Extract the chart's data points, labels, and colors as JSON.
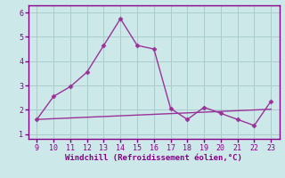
{
  "x": [
    9,
    10,
    11,
    12,
    13,
    14,
    15,
    16,
    17,
    18,
    19,
    20,
    21,
    22,
    23
  ],
  "y_line1": [
    1.6,
    2.55,
    2.95,
    3.55,
    4.65,
    5.75,
    4.65,
    4.5,
    2.05,
    1.6,
    2.1,
    1.85,
    1.6,
    1.35,
    2.35
  ],
  "y_line2": [
    1.6,
    1.63,
    1.66,
    1.69,
    1.72,
    1.75,
    1.78,
    1.81,
    1.84,
    1.87,
    1.9,
    1.93,
    1.96,
    1.99,
    2.02
  ],
  "line_color": "#993399",
  "bg_color": "#cce8e8",
  "grid_color": "#aacccc",
  "xlabel": "Windchill (Refroidissement éolien,°C)",
  "xlim": [
    8.5,
    23.5
  ],
  "ylim": [
    0.8,
    6.3
  ],
  "yticks": [
    1,
    2,
    3,
    4,
    5,
    6
  ],
  "xticks": [
    9,
    10,
    11,
    12,
    13,
    14,
    15,
    16,
    17,
    18,
    19,
    20,
    21,
    22,
    23
  ],
  "xlabel_color": "#880088",
  "tick_color": "#880088",
  "spine_color": "#880088",
  "marker": "D",
  "markersize": 2.5,
  "linewidth": 1.0,
  "tick_fontsize": 6,
  "xlabel_fontsize": 6.5
}
